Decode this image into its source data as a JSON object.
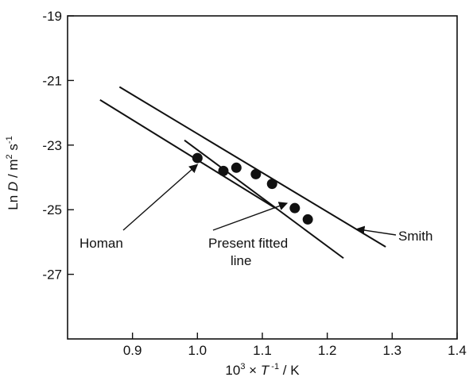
{
  "chart_data": {
    "type": "scatter",
    "x_axis": {
      "label_prefix": "10",
      "label_sup1": "3",
      "label_mid": " × ",
      "label_T": "T",
      "label_sup2": " -1",
      "label_suffix": " / K",
      "range": [
        0.8,
        1.4
      ],
      "ticks": [
        0.9,
        1.0,
        1.1,
        1.2,
        1.3,
        1.4
      ],
      "tick_labels": [
        "0.9",
        "1.0",
        "1.1",
        "1.2",
        "1.3",
        "1.4"
      ]
    },
    "y_axis": {
      "label_ln": "Ln ",
      "label_D": "D",
      "label_unit1": " / m",
      "label_sup1": "2",
      "label_unit2": " s",
      "label_sup2": "-1",
      "range": [
        -29,
        -19
      ],
      "ticks": [
        -19,
        -21,
        -23,
        -25,
        -27
      ],
      "tick_labels": [
        "-19",
        "-21",
        "-23",
        "-25",
        "-27"
      ]
    },
    "points": [
      {
        "x": 1.0,
        "y": -23.4
      },
      {
        "x": 1.04,
        "y": -23.8
      },
      {
        "x": 1.06,
        "y": -23.7
      },
      {
        "x": 1.09,
        "y": -23.9
      },
      {
        "x": 1.115,
        "y": -24.2
      },
      {
        "x": 1.15,
        "y": -24.95
      },
      {
        "x": 1.17,
        "y": -25.3
      }
    ],
    "lines": [
      {
        "name": "Smith",
        "x": [
          0.88,
          1.29
        ],
        "y": [
          -21.2,
          -26.15
        ]
      },
      {
        "name": "Present fitted line",
        "x": [
          0.98,
          1.225
        ],
        "y": [
          -22.85,
          -26.5
        ]
      },
      {
        "name": "Homan",
        "x": [
          0.85,
          1.12
        ],
        "y": [
          -21.6,
          -24.95
        ]
      }
    ],
    "annotations": [
      {
        "lines": [
          "Homan"
        ],
        "arrow_to": {
          "x": 1.0,
          "y": -23.6
        }
      },
      {
        "lines": [
          "Present fitted",
          "line"
        ],
        "arrow_to": {
          "x": 1.138,
          "y": -24.8
        }
      },
      {
        "lines": [
          "Smith"
        ],
        "arrow_to": {
          "x": 1.245,
          "y": -25.6
        }
      }
    ]
  }
}
